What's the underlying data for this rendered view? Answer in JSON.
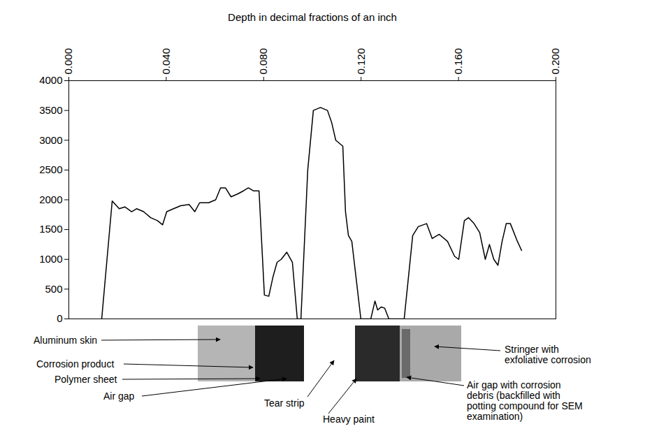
{
  "chart_data": {
    "type": "line",
    "x_label": "Depth in decimal fractions of an inch",
    "color": "#000000",
    "grid": false,
    "xlim": [
      0,
      0.2
    ],
    "xticks": [
      {
        "value": 0,
        "label": "0.000"
      },
      {
        "value": 0.04,
        "label": "0.040"
      },
      {
        "value": 0.08,
        "label": "0.080"
      },
      {
        "value": 0.12,
        "label": "0.120"
      },
      {
        "value": 0.16,
        "label": "0.160"
      },
      {
        "value": 0.2,
        "label": "0.200"
      }
    ],
    "ylim": [
      0,
      4000
    ],
    "yticks": [
      0,
      500,
      1000,
      1500,
      2000,
      2500,
      3000,
      3500,
      4000
    ],
    "x": [
      0.0135,
      0.0178,
      0.0207,
      0.023,
      0.0258,
      0.0278,
      0.0307,
      0.0336,
      0.0364,
      0.0385,
      0.0402,
      0.043,
      0.0459,
      0.0494,
      0.0517,
      0.0537,
      0.0574,
      0.0603,
      0.0623,
      0.0643,
      0.0666,
      0.0694,
      0.0717,
      0.0737,
      0.0758,
      0.0781,
      0.0803,
      0.0821,
      0.0838,
      0.0855,
      0.0872,
      0.0895,
      0.0918,
      0.0938,
      0.0953,
      0.0981,
      0.1004,
      0.1033,
      0.1062,
      0.1079,
      0.1096,
      0.1125,
      0.1136,
      0.1148,
      0.1162,
      0.1182,
      0.1199,
      0.124,
      0.1257,
      0.1268,
      0.1283,
      0.1297,
      0.1314,
      0.1377,
      0.1412,
      0.1435,
      0.1469,
      0.1492,
      0.1521,
      0.1555,
      0.1584,
      0.1601,
      0.1624,
      0.1641,
      0.1664,
      0.1687,
      0.171,
      0.1727,
      0.1745,
      0.1762,
      0.1779,
      0.1796,
      0.1813,
      0.1842,
      0.1859
    ],
    "values": [
      0,
      1980,
      1850,
      1880,
      1800,
      1850,
      1800,
      1700,
      1650,
      1580,
      1800,
      1850,
      1900,
      1920,
      1800,
      1950,
      1950,
      2000,
      2200,
      2200,
      2050,
      2100,
      2150,
      2200,
      2150,
      2150,
      400,
      380,
      700,
      950,
      1000,
      1120,
      950,
      0,
      0,
      2500,
      3500,
      3550,
      3500,
      3300,
      3000,
      2900,
      1800,
      1400,
      1300,
      600,
      0,
      0,
      300,
      150,
      200,
      180,
      0,
      0,
      1400,
      1550,
      1600,
      1350,
      1420,
      1300,
      1050,
      1000,
      1650,
      1700,
      1600,
      1450,
      1000,
      1250,
      1000,
      900,
      1300,
      1600,
      1600,
      1300,
      1150
    ],
    "annotations": [
      "Aluminum skin",
      "Corrosion product",
      "Polymer sheet",
      "Air gap",
      "Tear strip",
      "Heavy paint",
      "Stringer with exfoliative corrosion",
      "Air gap with corrosion debris (backfilled with potting compound for SEM examination)"
    ]
  }
}
